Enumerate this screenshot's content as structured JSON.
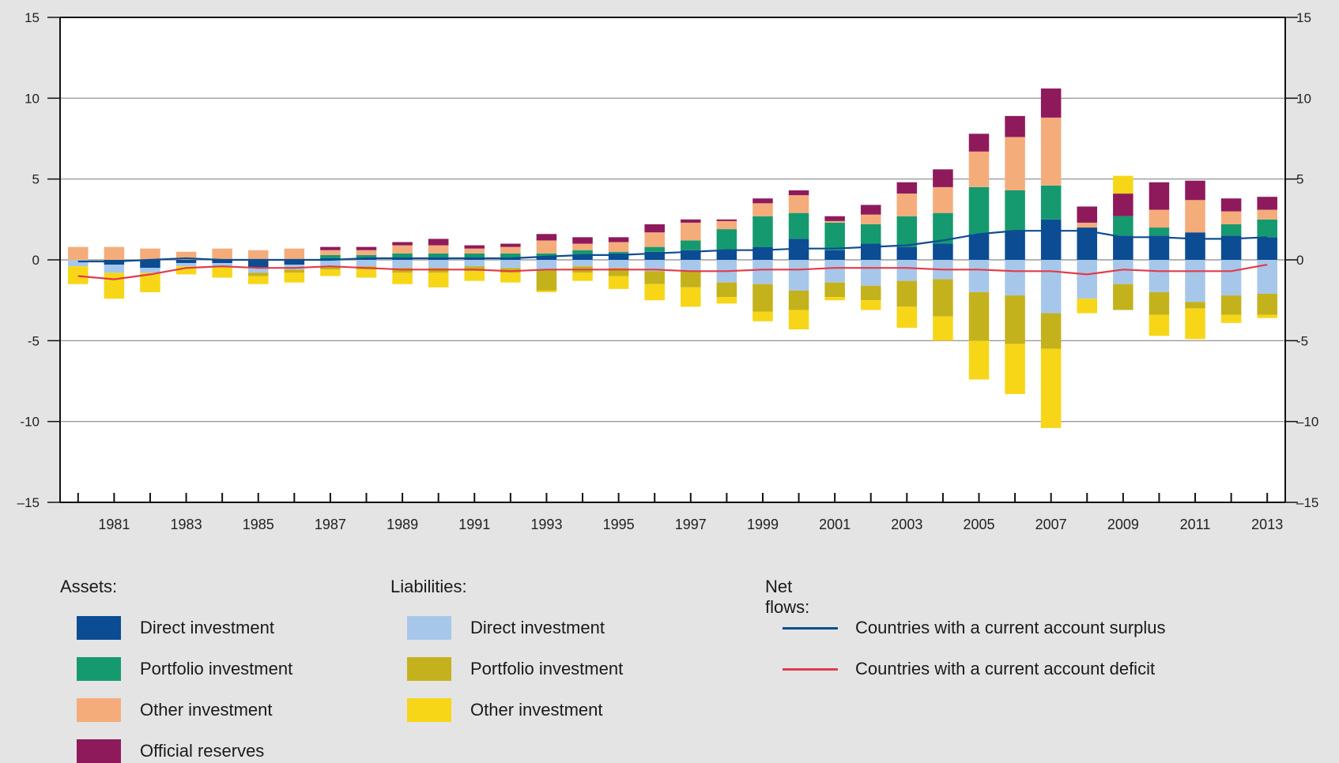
{
  "colors": {
    "assets_direct": "#0b4c93",
    "assets_portfolio": "#159a6f",
    "assets_other": "#f5ac7b",
    "assets_reserves": "#8e1a5c",
    "liab_direct": "#a7c7ea",
    "liab_portfolio": "#c4b21d",
    "liab_other": "#f7d617",
    "net_surplus": "#0d4d90",
    "net_deficit": "#e23b4a",
    "grid": "#888888",
    "axis": "#111111",
    "background": "#ffffff"
  },
  "legend": {
    "assets_heading": "Assets:",
    "liabilities_heading": "Liabilities:",
    "net_heading": "Net flows:",
    "assets_direct": "Direct investment",
    "assets_portfolio": "Portfolio investment",
    "assets_other": "Other investment",
    "assets_reserves": "Official reserves",
    "liab_direct": "Direct investment",
    "liab_portfolio": "Portfolio investment",
    "liab_other": "Other investment",
    "net_surplus": "Countries with a current account surplus",
    "net_deficit": "Countries with a current account deficit"
  },
  "chart_data": {
    "type": "bar",
    "stacked": true,
    "x": [
      1980,
      1981,
      1982,
      1983,
      1984,
      1985,
      1986,
      1987,
      1988,
      1989,
      1990,
      1991,
      1992,
      1993,
      1994,
      1995,
      1996,
      1997,
      1998,
      1999,
      2000,
      2001,
      2002,
      2003,
      2004,
      2005,
      2006,
      2007,
      2008,
      2009,
      2010,
      2011,
      2012,
      2013
    ],
    "x_tick_labels": [
      "1981",
      "1983",
      "1985",
      "1987",
      "1989",
      "1991",
      "1993",
      "1995",
      "1997",
      "1999",
      "2001",
      "2003",
      "2005",
      "2007",
      "2009",
      "2011",
      "2013"
    ],
    "ylim": [
      -15,
      15
    ],
    "y_ticks": [
      -15,
      -10,
      -5,
      0,
      5,
      10,
      15
    ],
    "y_tick_labels": [
      "–15",
      "-10",
      "-5",
      "0",
      "5",
      "10",
      "15"
    ],
    "y_tick_labels_right": [
      "–15",
      "–10",
      "-5",
      "0",
      "5",
      "10",
      "15"
    ],
    "grid": true,
    "series": [
      {
        "name": "Assets: Direct investment",
        "color_key": "assets_direct",
        "values": [
          0.0,
          -0.3,
          -0.5,
          -0.2,
          -0.2,
          -0.5,
          -0.3,
          0.1,
          0.1,
          0.1,
          0.1,
          0.1,
          0.1,
          0.2,
          0.3,
          0.4,
          0.5,
          0.6,
          0.6,
          0.8,
          1.3,
          0.6,
          1.0,
          0.8,
          1.0,
          1.6,
          1.8,
          2.5,
          2.0,
          1.5,
          1.5,
          1.7,
          1.5,
          1.4
        ]
      },
      {
        "name": "Assets: Portfolio investment",
        "color_key": "assets_portfolio",
        "values": [
          0.0,
          0.0,
          0.0,
          0.0,
          0.0,
          0.0,
          0.0,
          0.2,
          0.2,
          0.3,
          0.3,
          0.3,
          0.3,
          0.2,
          0.3,
          0.1,
          0.3,
          0.6,
          1.3,
          1.9,
          1.6,
          1.7,
          1.2,
          1.9,
          1.9,
          2.9,
          2.5,
          2.1,
          0.0,
          1.2,
          0.5,
          0.0,
          0.7,
          1.1
        ]
      },
      {
        "name": "Assets: Other investment",
        "color_key": "assets_other",
        "values": [
          0.8,
          0.8,
          0.7,
          0.5,
          0.7,
          0.6,
          0.7,
          0.3,
          0.3,
          0.5,
          0.5,
          0.3,
          0.4,
          0.8,
          0.4,
          0.6,
          0.9,
          1.1,
          0.5,
          0.8,
          1.1,
          0.1,
          0.6,
          1.4,
          1.6,
          2.2,
          3.3,
          4.2,
          0.3,
          0.0,
          1.1,
          2.0,
          0.8,
          0.6
        ]
      },
      {
        "name": "Assets: Official reserves",
        "color_key": "assets_reserves",
        "values": [
          0.0,
          0.0,
          0.0,
          0.0,
          0.0,
          0.0,
          0.0,
          0.2,
          0.2,
          0.2,
          0.4,
          0.2,
          0.2,
          0.4,
          0.4,
          0.3,
          0.5,
          0.2,
          0.1,
          0.3,
          0.3,
          0.3,
          0.6,
          0.7,
          1.1,
          1.1,
          1.3,
          1.8,
          1.0,
          1.4,
          1.7,
          1.2,
          0.8,
          0.8
        ]
      },
      {
        "name": "Liabilities: Direct investment",
        "color_key": "liab_direct",
        "values": [
          -0.4,
          -0.5,
          -0.3,
          -0.2,
          -0.2,
          -0.3,
          -0.3,
          -0.4,
          -0.4,
          -0.5,
          -0.5,
          -0.4,
          -0.5,
          -0.6,
          -0.4,
          -0.5,
          -0.7,
          -0.7,
          -1.4,
          -1.5,
          -1.9,
          -1.4,
          -1.6,
          -1.3,
          -1.2,
          -2.0,
          -2.2,
          -3.3,
          -2.4,
          -1.5,
          -2.0,
          -2.6,
          -2.2,
          -2.1
        ]
      },
      {
        "name": "Liabilities: Portfolio investment",
        "color_key": "liab_portfolio",
        "values": [
          0.0,
          0.0,
          0.0,
          0.0,
          0.0,
          -0.2,
          -0.2,
          -0.2,
          -0.2,
          -0.3,
          -0.3,
          -0.3,
          -0.3,
          -1.3,
          -0.4,
          -0.5,
          -0.8,
          -1.0,
          -0.9,
          -1.7,
          -1.2,
          -0.9,
          -0.9,
          -1.6,
          -2.3,
          -3.0,
          -3.0,
          -2.2,
          0.0,
          -1.6,
          -1.4,
          -0.4,
          -1.2,
          -1.3
        ]
      },
      {
        "name": "Liabilities: Other investment",
        "color_key": "liab_other",
        "values": [
          -1.1,
          -1.6,
          -1.2,
          -0.5,
          -0.7,
          -0.5,
          -0.6,
          -0.4,
          -0.5,
          -0.7,
          -0.9,
          -0.6,
          -0.6,
          -0.1,
          -0.5,
          -0.8,
          -1.0,
          -1.2,
          -0.4,
          -0.6,
          -1.2,
          -0.2,
          -0.6,
          -1.3,
          -1.5,
          -2.4,
          -3.1,
          -4.9,
          -0.9,
          0.0,
          -1.3,
          -1.9,
          -0.5,
          -0.2
        ]
      },
      {
        "name": "Liabilities: Other investment (positive)",
        "color_key": "liab_other",
        "values": [
          0,
          0,
          0,
          0,
          0,
          0,
          0,
          0,
          0,
          0,
          0,
          0,
          0,
          0,
          0,
          0,
          0,
          0,
          0,
          0,
          0,
          0,
          0,
          0,
          0,
          0,
          0,
          0,
          0,
          1.1,
          0,
          0,
          0,
          0
        ]
      }
    ],
    "lines": [
      {
        "name": "Countries with a current account surplus",
        "color_key": "net_surplus",
        "values": [
          -0.1,
          -0.1,
          0.0,
          0.1,
          0.0,
          0.0,
          0.0,
          0.0,
          0.1,
          0.1,
          0.1,
          0.1,
          0.1,
          0.2,
          0.3,
          0.3,
          0.4,
          0.5,
          0.6,
          0.6,
          0.7,
          0.7,
          0.8,
          0.9,
          1.2,
          1.6,
          1.8,
          1.8,
          1.8,
          1.4,
          1.4,
          1.3,
          1.3,
          1.4
        ]
      },
      {
        "name": "Countries with a current account deficit",
        "color_key": "net_deficit",
        "values": [
          -1.0,
          -1.2,
          -0.9,
          -0.5,
          -0.4,
          -0.5,
          -0.5,
          -0.4,
          -0.5,
          -0.6,
          -0.6,
          -0.6,
          -0.7,
          -0.6,
          -0.6,
          -0.6,
          -0.6,
          -0.7,
          -0.7,
          -0.6,
          -0.6,
          -0.5,
          -0.5,
          -0.5,
          -0.6,
          -0.6,
          -0.7,
          -0.7,
          -0.9,
          -0.6,
          -0.7,
          -0.7,
          -0.7,
          -0.3
        ]
      }
    ]
  }
}
